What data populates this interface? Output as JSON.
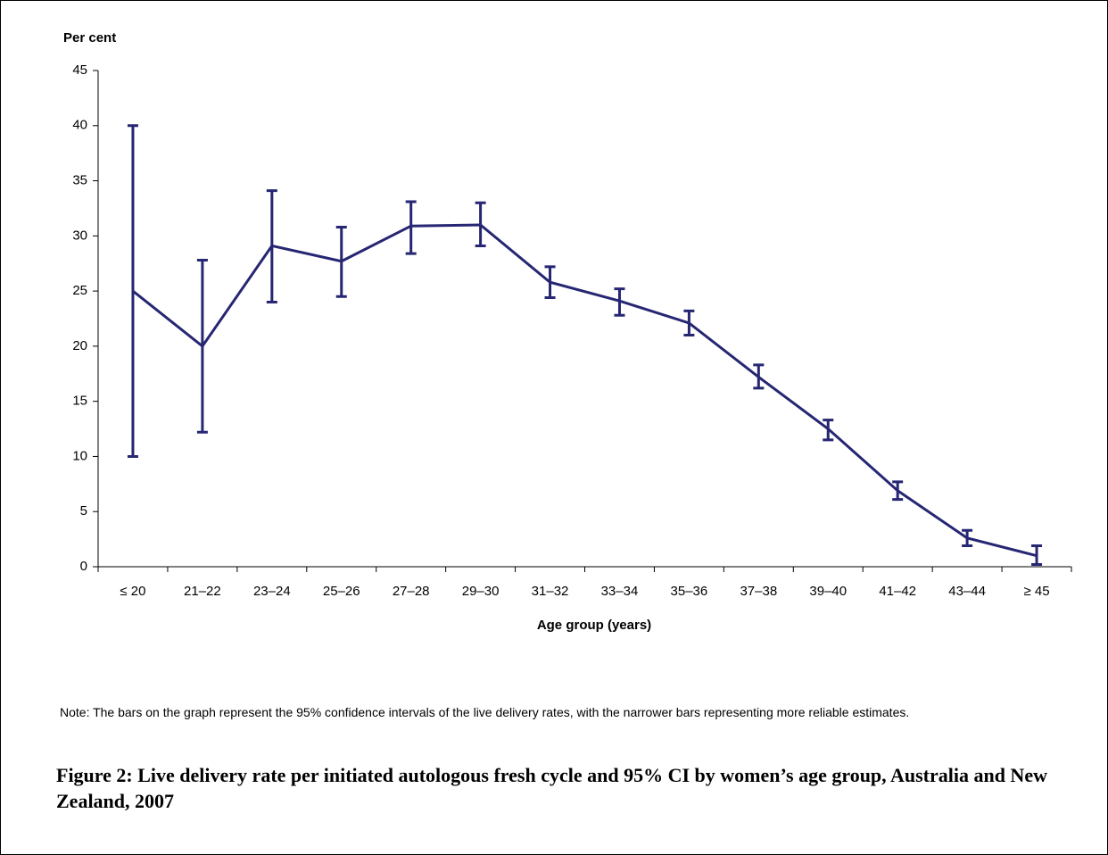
{
  "chart_data": {
    "type": "line",
    "y_axis_label": "Per cent",
    "x_axis_label": "Age group (years)",
    "note": "Note: The bars on the graph represent the 95% confidence intervals of the live delivery rates, with the narrower bars representing more reliable estimates.",
    "caption": "Figure 2: Live delivery rate per initiated autologous fresh cycle and 95% CI by women’s age group, Australia and New Zealand, 2007",
    "categories": [
      "≤ 20",
      "21–22",
      "23–24",
      "25–26",
      "27–28",
      "29–30",
      "31–32",
      "33–34",
      "35–36",
      "37–38",
      "39–40",
      "41–42",
      "43–44",
      "≥ 45"
    ],
    "color": "#262673",
    "values": [
      25,
      20,
      29.1,
      27.7,
      30.9,
      31,
      25.8,
      24.1,
      22.1,
      17.2,
      12.5,
      6.9,
      2.6,
      1.0
    ],
    "ci_lower": [
      10,
      12.2,
      24,
      24.5,
      28.4,
      29.1,
      24.4,
      22.8,
      21,
      16.2,
      11.5,
      6.1,
      1.9,
      0.2
    ],
    "ci_upper": [
      40,
      27.8,
      34.1,
      30.8,
      33.1,
      33,
      27.2,
      25.2,
      23.2,
      18.3,
      13.3,
      7.7,
      3.3,
      1.9
    ],
    "ylim": [
      0,
      45
    ],
    "yticks": [
      0,
      5,
      10,
      15,
      20,
      25,
      30,
      35,
      40,
      45
    ]
  }
}
